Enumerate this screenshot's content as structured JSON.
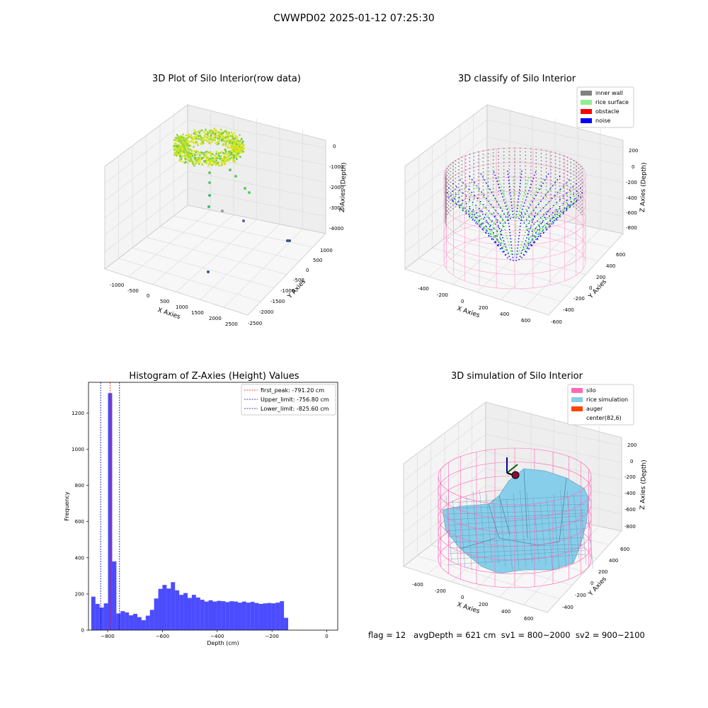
{
  "suptitle": "CWWPD02 2025-01-12 07:25:30",
  "status_text": "flag = 12   avgDepth = 621 cm  sv1 = 800~2000  sv2 = 900~2100",
  "chart_data": [
    {
      "type": "scatter",
      "title": "3D Plot of Silo Interior(row data)",
      "xlabel": "X Axies",
      "ylabel": "Y Axies",
      "zlabel": "Z Axies (Depth)",
      "x_ticks": [
        "-1000",
        "-500",
        "0",
        "500",
        "1000",
        "1500",
        "2000",
        "2500"
      ],
      "y_ticks": [
        "1000",
        "500",
        "0",
        "-500",
        "-1000",
        "-1500",
        "-2000",
        "-2500"
      ],
      "z_ticks": [
        "0",
        "-1000",
        "-2000",
        "-3000",
        "-4000"
      ],
      "colors": {
        "high": "#e8e810",
        "mid": "#7fd34e",
        "low": "#3b528b",
        "outlier": "#440154"
      }
    },
    {
      "type": "scatter",
      "title": "3D classify of Silo Interior",
      "xlabel": "X Axies",
      "ylabel": "Y Axies",
      "zlabel": "Z Axies (Depth)",
      "x_ticks": [
        "-400",
        "-200",
        "0",
        "200",
        "400",
        "600"
      ],
      "y_ticks": [
        "600",
        "400",
        "200",
        "0",
        "-200",
        "-400",
        "-600"
      ],
      "z_ticks": [
        "200",
        "0",
        "-200",
        "-400",
        "-600",
        "-800"
      ],
      "legend": [
        {
          "label": "inner wall",
          "color": "#808080"
        },
        {
          "label": "rice surface",
          "color": "#90ee90"
        },
        {
          "label": "obstacle",
          "color": "#ff0000"
        },
        {
          "label": "noise",
          "color": "#0000ff"
        }
      ],
      "legend_position": "top-right"
    },
    {
      "type": "bar",
      "title": "Histogram of Z-Axies (Height) Values",
      "xlabel": "Depth (cm)",
      "ylabel": "Frequency",
      "xlim": [
        -870,
        40
      ],
      "ylim": [
        0,
        1370
      ],
      "x_ticks": [
        -800,
        -600,
        -400,
        -200,
        0
      ],
      "y_ticks": [
        0,
        200,
        400,
        600,
        800,
        1000,
        1200
      ],
      "bin_start": -860,
      "bin_width": 15.3,
      "values": [
        185,
        145,
        125,
        148,
        1310,
        380,
        92,
        105,
        98,
        82,
        90,
        72,
        55,
        80,
        112,
        175,
        228,
        250,
        230,
        265,
        220,
        195,
        205,
        178,
        195,
        180,
        168,
        158,
        165,
        158,
        162,
        160,
        155,
        160,
        158,
        152,
        158,
        152,
        156,
        150,
        145,
        148,
        150,
        148,
        152,
        160,
        68
      ],
      "bar_color": "#0000ff",
      "lines": [
        {
          "label": "first_peak: -791.20 cm",
          "x": -791.2,
          "color": "#ff0000"
        },
        {
          "label": "Upper_limit: -756.80 cm",
          "x": -756.8,
          "color": "#0000aa"
        },
        {
          "label": "Lower_limit: -825.60 cm",
          "x": -825.6,
          "color": "#0000aa"
        }
      ],
      "legend_position": "top-right"
    },
    {
      "type": "area",
      "title": "3D simulation of Silo Interior",
      "xlabel": "X Axies",
      "ylabel": "Y Axies",
      "zlabel": "Z Axies (Depth)",
      "x_ticks": [
        "-400",
        "-200",
        "0",
        "200",
        "400",
        "600"
      ],
      "y_ticks": [
        "600",
        "400",
        "200",
        "0",
        "-200",
        "-400"
      ],
      "z_ticks": [
        "200",
        "0",
        "-200",
        "-400",
        "-600",
        "-800"
      ],
      "legend": [
        {
          "label": "silo",
          "color": "#ff69b4"
        },
        {
          "label": "rice simulation",
          "color": "#87ceeb"
        },
        {
          "label": "auger",
          "color": "#ff4500"
        },
        {
          "label": "center(82,6)",
          "color": "#ffffff"
        }
      ],
      "legend_position": "top-right"
    }
  ]
}
